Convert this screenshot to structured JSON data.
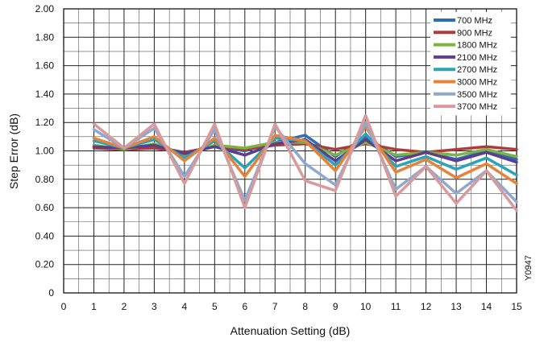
{
  "chart_data": {
    "type": "line",
    "xlabel": "Attenuation Setting (dB)",
    "ylabel": "Step Error (dB)",
    "xlim": [
      0,
      15
    ],
    "ylim": [
      0,
      2.0
    ],
    "x_ticks": [
      "0",
      "1",
      "2",
      "3",
      "4",
      "5",
      "6",
      "7",
      "8",
      "9",
      "10",
      "11",
      "12",
      "13",
      "14",
      "15"
    ],
    "y_ticks": [
      "0",
      "0.20",
      "0.40",
      "0.60",
      "0.80",
      "1.00",
      "1.20",
      "1.40",
      "1.60",
      "1.80",
      "2.00"
    ],
    "grid": true,
    "legend_position": "top-right",
    "figure_code": "Y0947",
    "x": [
      1,
      2,
      3,
      4,
      5,
      6,
      7,
      8,
      9,
      10,
      11,
      12,
      13,
      14,
      15
    ],
    "series": [
      {
        "name": "700 MHz",
        "color": "#2e6fb0",
        "values": [
          1.03,
          1.02,
          1.03,
          0.99,
          1.03,
          1.0,
          1.06,
          1.11,
          0.96,
          1.1,
          0.96,
          0.99,
          0.94,
          1.0,
          0.94
        ]
      },
      {
        "name": "900 MHz",
        "color": "#b03a3a",
        "values": [
          1.02,
          1.01,
          1.02,
          0.99,
          1.03,
          1.01,
          1.04,
          1.05,
          1.01,
          1.05,
          1.01,
          0.99,
          1.01,
          1.03,
          1.01
        ]
      },
      {
        "name": "1800 MHz",
        "color": "#7cb343",
        "values": [
          1.04,
          1.01,
          1.05,
          0.97,
          1.04,
          1.02,
          1.06,
          1.06,
          0.97,
          1.06,
          0.97,
          0.99,
          0.97,
          1.01,
          0.96
        ]
      },
      {
        "name": "2100 MHz",
        "color": "#5e3d8f",
        "values": [
          1.03,
          1.02,
          1.04,
          0.98,
          1.03,
          0.97,
          1.05,
          1.08,
          0.93,
          1.08,
          0.93,
          0.99,
          0.93,
          0.99,
          0.92
        ]
      },
      {
        "name": "2700 MHz",
        "color": "#2ea3b5",
        "values": [
          1.07,
          1.02,
          1.08,
          0.95,
          1.07,
          0.88,
          1.09,
          1.07,
          0.9,
          1.12,
          0.89,
          0.96,
          0.87,
          0.95,
          0.83
        ]
      },
      {
        "name": "3000 MHz",
        "color": "#e8823a",
        "values": [
          1.09,
          1.02,
          1.1,
          0.93,
          1.09,
          0.82,
          1.11,
          1.07,
          0.86,
          1.17,
          0.85,
          0.94,
          0.81,
          0.91,
          0.77
        ]
      },
      {
        "name": "3500 MHz",
        "color": "#8fa8cf",
        "values": [
          1.15,
          1.02,
          1.16,
          0.82,
          1.15,
          0.65,
          1.17,
          0.91,
          0.76,
          1.2,
          0.73,
          0.89,
          0.7,
          0.86,
          0.64
        ]
      },
      {
        "name": "3700 MHz",
        "color": "#d99a9a",
        "values": [
          1.19,
          1.02,
          1.19,
          0.77,
          1.19,
          0.6,
          1.19,
          0.79,
          0.72,
          1.25,
          0.68,
          0.89,
          0.63,
          0.86,
          0.58
        ]
      }
    ]
  }
}
